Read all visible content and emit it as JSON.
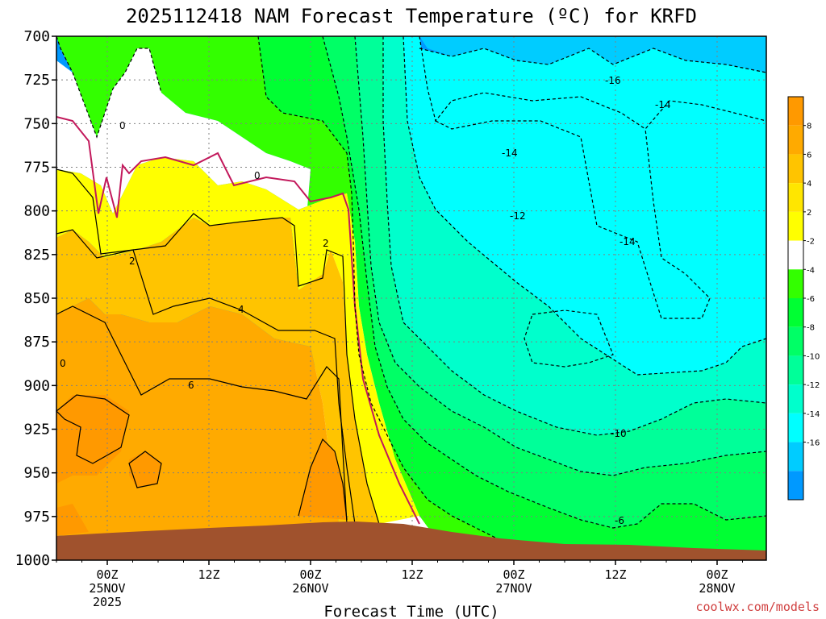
{
  "chart_data": {
    "type": "heatmap",
    "title": "2025112418 NAM Forecast Temperature (ºC) for KRFD",
    "xlabel": "Forecast Time (UTC)",
    "ylabel": "",
    "credit": "coolwx.com/models",
    "y_ticks": [
      "700",
      "725",
      "750",
      "775",
      "800",
      "825",
      "850",
      "875",
      "900",
      "925",
      "950",
      "975",
      "1000"
    ],
    "ylim": [
      1000,
      700
    ],
    "x_ticks": [
      {
        "time": "00Z",
        "date": "25NOV",
        "year": "2025"
      },
      {
        "time": "12Z",
        "date": "",
        "year": ""
      },
      {
        "time": "00Z",
        "date": "26NOV",
        "year": ""
      },
      {
        "time": "12Z",
        "date": "",
        "year": ""
      },
      {
        "time": "00Z",
        "date": "27NOV",
        "year": ""
      },
      {
        "time": "12Z",
        "date": "",
        "year": ""
      },
      {
        "time": "00Z",
        "date": "28NOV",
        "year": ""
      }
    ],
    "colorbar": {
      "labels": [
        "8",
        "6",
        "4",
        "2",
        "-2",
        "-4",
        "-6",
        "-8",
        "-10",
        "-12",
        "-14",
        "-16"
      ],
      "colors": [
        "#ff9900",
        "#ffaa00",
        "#ffc400",
        "#ffe600",
        "#ffff00",
        "#ffffff",
        "#33ff00",
        "#00ff33",
        "#00ff66",
        "#00ff99",
        "#00ffcc",
        "#00ffff",
        "#00ccff",
        "#0099ff"
      ]
    },
    "contour_labels": [
      "0",
      "0",
      "2",
      "2",
      "4",
      "6",
      "0",
      "-16",
      "-14",
      "-14",
      "-12",
      "-14",
      "-10",
      "-6"
    ],
    "colors": {
      "ground": "#a0522d",
      "freezing_line": "#c2185b"
    }
  }
}
